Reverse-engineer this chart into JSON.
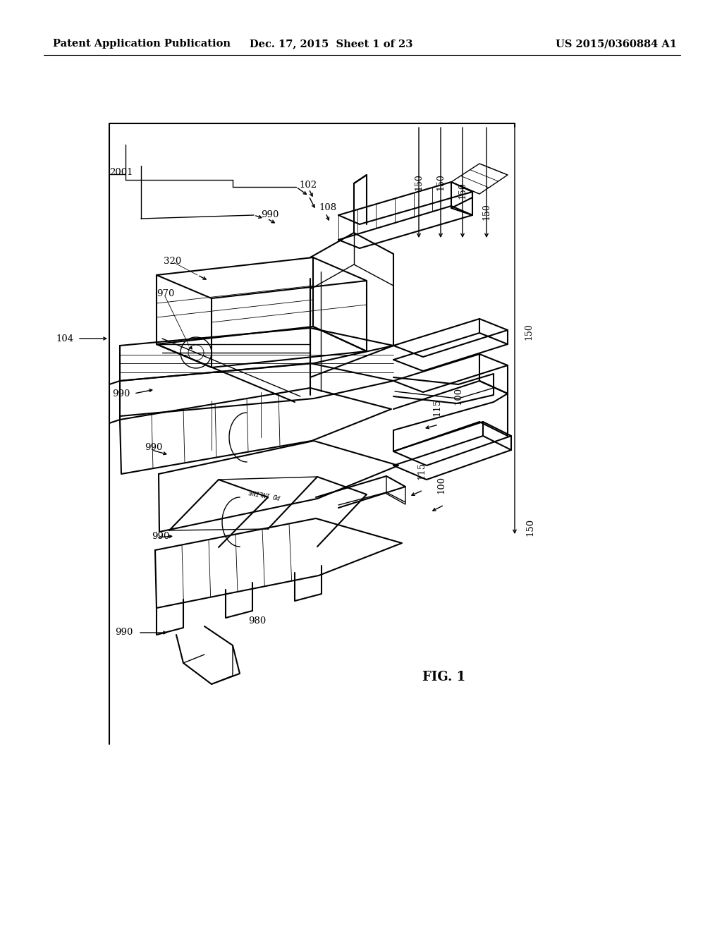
{
  "background_color": "#ffffff",
  "header_left": "Patent Application Publication",
  "header_center": "Dec. 17, 2015  Sheet 1 of 23",
  "header_right": "US 2015/0360884 A1",
  "fig_label": "FIG. 1",
  "header_fontsize": 10.5,
  "fig_label_fontsize": 13,
  "annotation_fontsize": 9.5
}
